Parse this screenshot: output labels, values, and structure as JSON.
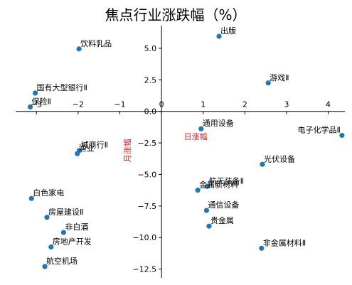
{
  "chart_data": {
    "type": "scatter",
    "title": "焦点行业涨跌幅（%）",
    "xlabel": "日涨幅",
    "ylabel": "月涨幅",
    "xlim": [
      -3.5,
      4.4
    ],
    "ylim": [
      -13.2,
      6.8
    ],
    "x_ticks": [
      -3,
      -2,
      -1,
      0,
      1,
      2,
      3,
      4
    ],
    "y_ticks": [
      -12.5,
      -10.0,
      -7.5,
      -5.0,
      -2.5,
      0.0,
      2.5,
      5.0
    ],
    "axis_color": "#000000",
    "point_color": "#1f77b4",
    "label_color": "#d62728",
    "grid": false,
    "points": [
      {
        "label": "出版",
        "x": 1.38,
        "y": 5.95
      },
      {
        "label": "饮料乳品",
        "x": -1.98,
        "y": 4.95
      },
      {
        "label": "游戏Ⅱ",
        "x": 2.56,
        "y": 2.25
      },
      {
        "label": "国有大型银行Ⅱ",
        "x": -3.03,
        "y": 1.45
      },
      {
        "label": "保险Ⅱ",
        "x": -3.15,
        "y": 0.35
      },
      {
        "label": "通用设备",
        "x": 0.95,
        "y": -1.38
      },
      {
        "label": "电子化学品Ⅱ",
        "x": 4.33,
        "y": -1.9
      },
      {
        "label": "城商行Ⅱ",
        "x": -1.97,
        "y": -3.1
      },
      {
        "label": "渔业",
        "x": -2.02,
        "y": -3.35
      },
      {
        "label": "光伏设备",
        "x": 2.42,
        "y": -4.2
      },
      {
        "label": "航天装备Ⅱ",
        "x": 1.1,
        "y": -5.95
      },
      {
        "label": "金属新材料",
        "x": 0.87,
        "y": -6.25
      },
      {
        "label": "白色家电",
        "x": -3.12,
        "y": -6.9
      },
      {
        "label": "通信设备",
        "x": 1.08,
        "y": -7.85
      },
      {
        "label": "房屋建设Ⅱ",
        "x": -2.75,
        "y": -8.4
      },
      {
        "label": "贵金属",
        "x": 1.14,
        "y": -9.1
      },
      {
        "label": "非白酒",
        "x": -2.35,
        "y": -9.6
      },
      {
        "label": "房地产开发",
        "x": -2.65,
        "y": -10.75
      },
      {
        "label": "非金属材料Ⅱ",
        "x": 2.4,
        "y": -10.85
      },
      {
        "label": "航空机场",
        "x": -2.8,
        "y": -12.3
      }
    ]
  }
}
